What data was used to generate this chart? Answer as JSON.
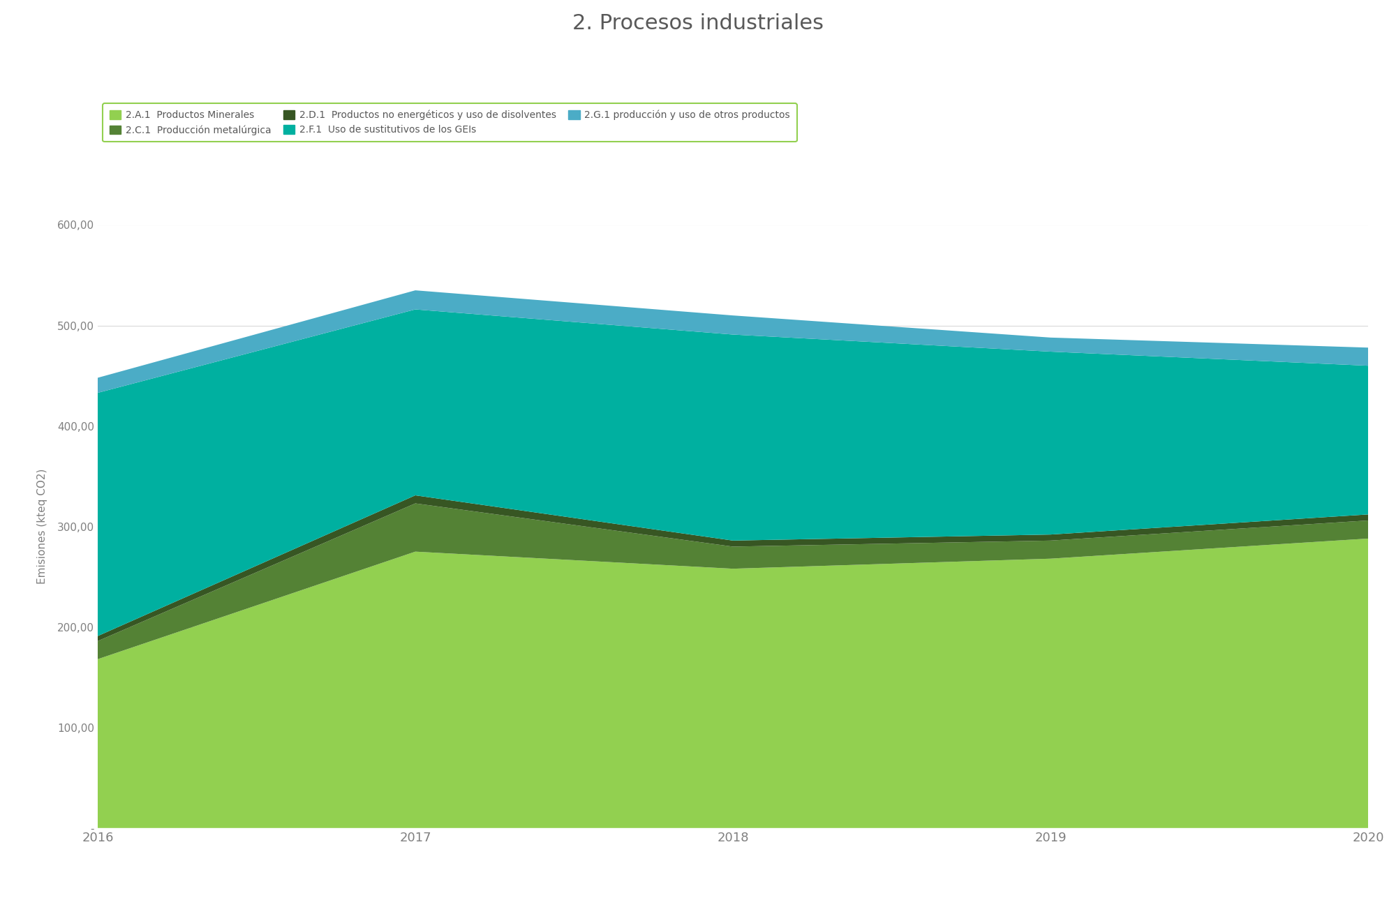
{
  "title": "2. Procesos industriales",
  "years": [
    2016,
    2017,
    2018,
    2019,
    2020
  ],
  "series": [
    {
      "label": "2.A.1  Productos Minerales",
      "color": "#92D050",
      "values": [
        168,
        275,
        258,
        268,
        288
      ]
    },
    {
      "label": "2.C.1  Producción metalúrgica",
      "color": "#548235",
      "values": [
        18,
        48,
        22,
        18,
        18
      ]
    },
    {
      "label": "2.D.1  Productos no energéticos y uso de disolventes",
      "color": "#375623",
      "values": [
        5,
        8,
        6,
        6,
        6
      ]
    },
    {
      "label": "2.F.1  Uso de sustitutivos de los GEIs",
      "color": "#00B0A0",
      "values": [
        242,
        185,
        205,
        182,
        148
      ]
    },
    {
      "label": "2.G.1 producción y uso de otros productos",
      "color": "#4BACC6",
      "values": [
        15,
        19,
        19,
        14,
        18
      ]
    }
  ],
  "ylabel": "Emisiones (kteq CO2)",
  "ylim": [
    0,
    600
  ],
  "yticks": [
    0,
    100,
    200,
    300,
    400,
    500,
    600
  ],
  "ytick_labels": [
    "-",
    "100,00",
    "200,00",
    "300,00",
    "400,00",
    "500,00",
    "600,00"
  ],
  "legend_border_color": "#92D050",
  "background_color": "#FFFFFF",
  "title_fontsize": 22,
  "axis_fontsize": 11,
  "tick_fontsize": 11
}
